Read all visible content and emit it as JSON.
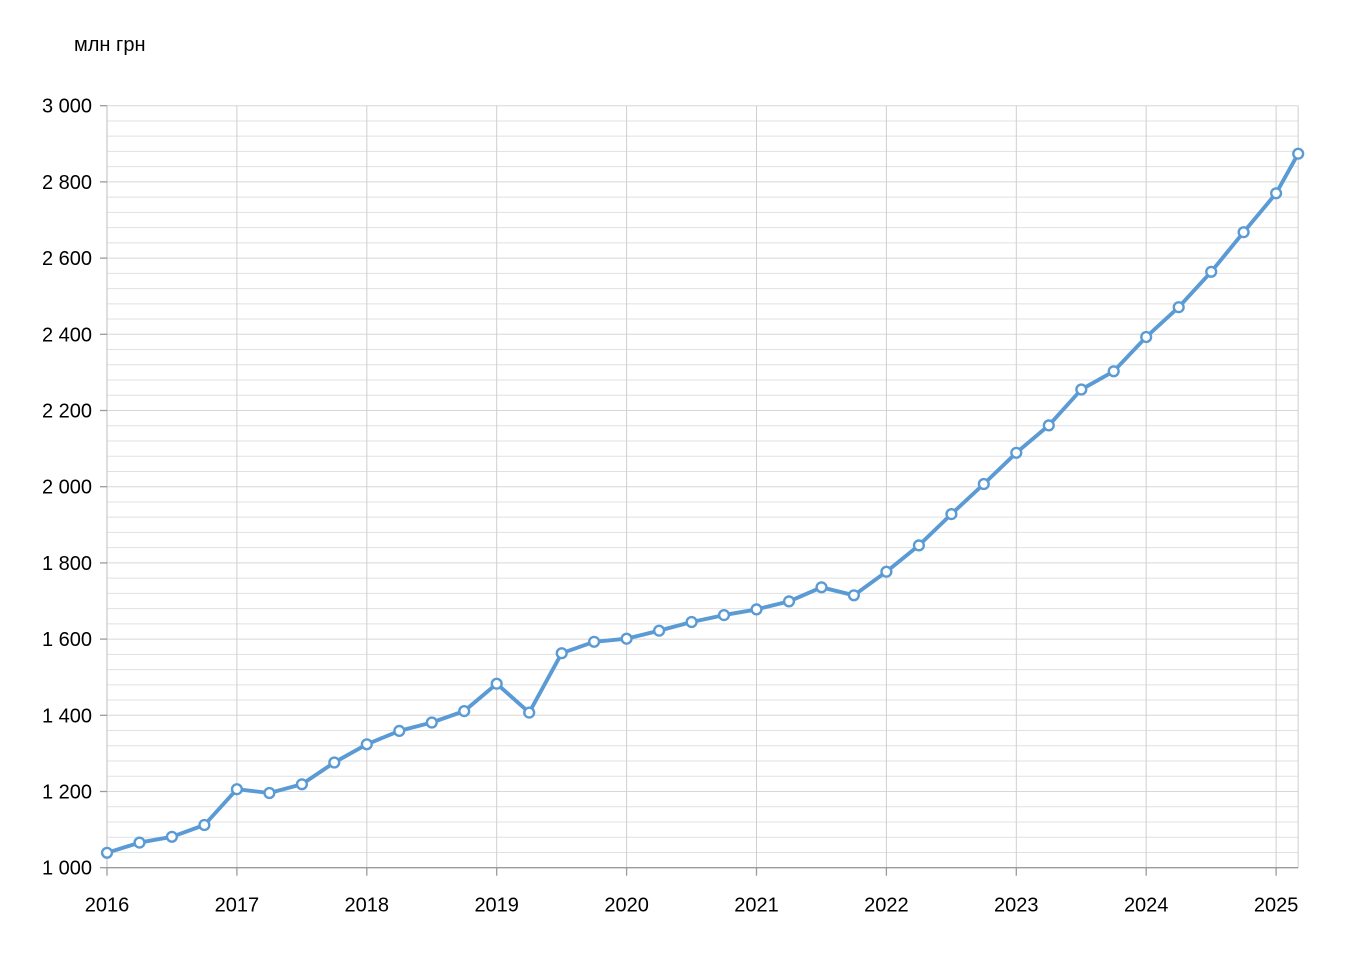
{
  "chart_data": {
    "type": "line",
    "title": "",
    "unit_label": "млн грн",
    "xlabel": "",
    "ylabel": "млн грн",
    "xlim": [
      2016,
      2025.17
    ],
    "ylim": [
      1000,
      3000
    ],
    "y_tick_values": [
      1000,
      1200,
      1400,
      1600,
      1800,
      2000,
      2200,
      2400,
      2600,
      2800,
      3000
    ],
    "y_tick_labels": [
      "1 000",
      "1 200",
      "1 400",
      "1 600",
      "1 800",
      "2 000",
      "2 200",
      "2 400",
      "2 600",
      "2 800",
      "3 000"
    ],
    "y_minor_step": 40,
    "x_tick_values": [
      2016,
      2017,
      2018,
      2019,
      2020,
      2021,
      2022,
      2023,
      2024,
      2025
    ],
    "x_tick_labels": [
      "2016",
      "2017",
      "2018",
      "2019",
      "2020",
      "2021",
      "2022",
      "2023",
      "2024",
      "2025"
    ],
    "grid": true,
    "legend": "none",
    "series": [
      {
        "name": "млн грн",
        "color": "#5B9BD5",
        "marker": "open-circle",
        "marker_fill": "#FFFFFF",
        "x": [
          2016.0,
          2016.25,
          2016.5,
          2016.75,
          2017.0,
          2017.25,
          2017.5,
          2017.75,
          2018.0,
          2018.25,
          2018.5,
          2018.75,
          2019.0,
          2019.25,
          2019.5,
          2019.75,
          2020.0,
          2020.25,
          2020.5,
          2020.75,
          2021.0,
          2021.25,
          2021.5,
          2021.75,
          2022.0,
          2022.25,
          2022.5,
          2022.75,
          2023.0,
          2023.25,
          2023.5,
          2023.75,
          2024.0,
          2024.25,
          2024.5,
          2024.75,
          2025.0,
          2025.17
        ],
        "values": [
          1039,
          1066,
          1081,
          1112,
          1206,
          1196,
          1219,
          1276,
          1324,
          1359,
          1381,
          1411,
          1483,
          1407,
          1563,
          1593,
          1601,
          1622,
          1645,
          1663,
          1678,
          1699,
          1736,
          1715,
          1777,
          1846,
          1928,
          2007,
          2089,
          2161,
          2255,
          2303,
          2393,
          2471,
          2564,
          2668,
          2770,
          2874
        ]
      }
    ]
  }
}
